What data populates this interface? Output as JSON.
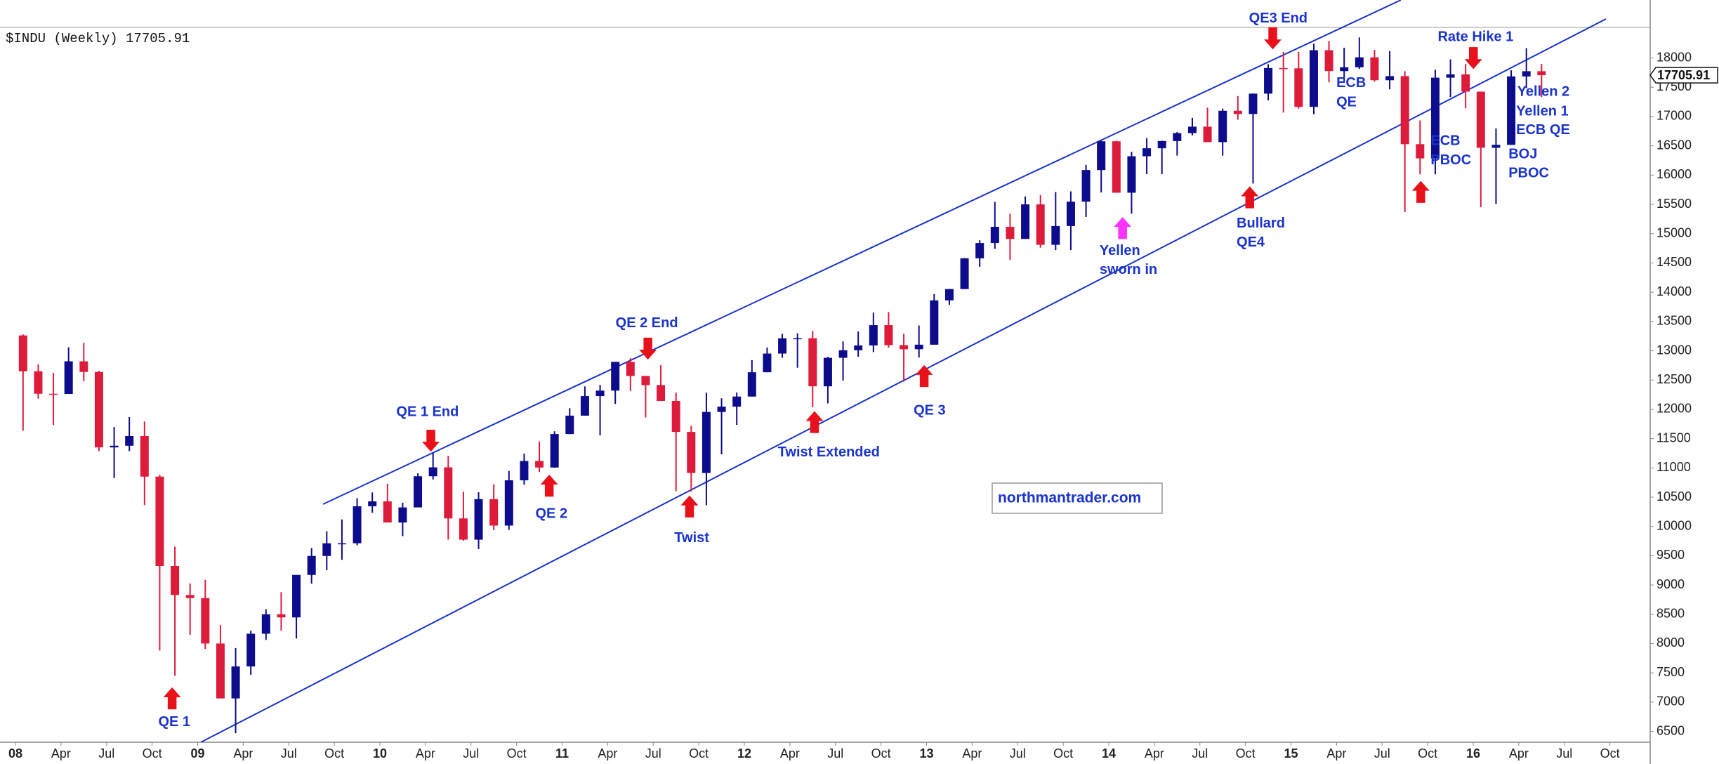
{
  "chart_data": {
    "type": "candlestick",
    "title": "$INDU (Weekly) 17705.91",
    "price_tag": "17705.91",
    "watermark": "northmantrader.com",
    "up_color": "#0c0c8c",
    "down_color": "#dd1c3c",
    "x": [
      "2008-01",
      "2008-02",
      "2008-03",
      "2008-04",
      "2008-05",
      "2008-06",
      "2008-07",
      "2008-08",
      "2008-09",
      "2008-10",
      "2008-11",
      "2008-12",
      "2009-01",
      "2009-02",
      "2009-03",
      "2009-04",
      "2009-05",
      "2009-06",
      "2009-07",
      "2009-08",
      "2009-09",
      "2009-10",
      "2009-11",
      "2009-12",
      "2010-01",
      "2010-02",
      "2010-03",
      "2010-04",
      "2010-05",
      "2010-06",
      "2010-07",
      "2010-08",
      "2010-09",
      "2010-10",
      "2010-11",
      "2010-12",
      "2011-01",
      "2011-02",
      "2011-03",
      "2011-04",
      "2011-05",
      "2011-06",
      "2011-07",
      "2011-08",
      "2011-09",
      "2011-10",
      "2011-11",
      "2011-12",
      "2012-01",
      "2012-02",
      "2012-03",
      "2012-04",
      "2012-05",
      "2012-06",
      "2012-07",
      "2012-08",
      "2012-09",
      "2012-10",
      "2012-11",
      "2012-12",
      "2013-01",
      "2013-02",
      "2013-03",
      "2013-04",
      "2013-05",
      "2013-06",
      "2013-07",
      "2013-08",
      "2013-09",
      "2013-10",
      "2013-11",
      "2013-12",
      "2014-01",
      "2014-02",
      "2014-03",
      "2014-04",
      "2014-05",
      "2014-06",
      "2014-07",
      "2014-08",
      "2014-09",
      "2014-10",
      "2014-11",
      "2014-12",
      "2015-01",
      "2015-02",
      "2015-03",
      "2015-04",
      "2015-05",
      "2015-06",
      "2015-07",
      "2015-08",
      "2015-09",
      "2015-10",
      "2015-11",
      "2015-12",
      "2016-01",
      "2016-02",
      "2016-03",
      "2016-04",
      "2016-05"
    ],
    "open": [
      13262,
      12650,
      12266,
      12263,
      12820,
      12638,
      11350,
      11378,
      11544,
      10851,
      9325,
      8829,
      8776,
      8001,
      7063,
      7609,
      8168,
      8500,
      8447,
      9172,
      9496,
      9712,
      9713,
      10344,
      10428,
      10067,
      10325,
      10857,
      11009,
      10137,
      9774,
      10466,
      10015,
      10788,
      11118,
      11006,
      11578,
      11892,
      12226,
      12320,
      12811,
      12570,
      12414,
      12143,
      11614,
      10913,
      11955,
      12046,
      12218,
      12633,
      12952,
      13212,
      13214,
      12393,
      12880,
      13009,
      13091,
      13437,
      13096,
      13026,
      13104,
      13861,
      14054,
      14579,
      14840,
      15116,
      14910,
      15500,
      14810,
      15130,
      15546,
      16086,
      16577,
      15699,
      16322,
      16458,
      16581,
      16717,
      16827,
      16563,
      17098,
      17043,
      17391,
      17828,
      17823,
      17165,
      18133,
      17776,
      17841,
      18011,
      17620,
      17690,
      16528,
      16285,
      17664,
      17720,
      17425,
      16466,
      16517,
      17685,
      17774
    ],
    "high": [
      13279,
      12767,
      12622,
      13058,
      13136,
      12657,
      11698,
      11867,
      11790,
      10883,
      9654,
      9026,
      9088,
      8316,
      7924,
      8220,
      8587,
      8878,
      9171,
      9630,
      9917,
      10120,
      10483,
      10580,
      10729,
      10405,
      10907,
      11258,
      11205,
      10594,
      10584,
      10720,
      10948,
      11245,
      11452,
      11625,
      12020,
      12391,
      12419,
      12810,
      12876,
      12570,
      12753,
      12284,
      11717,
      12284,
      12188,
      12288,
      12841,
      13056,
      13289,
      13297,
      13338,
      12898,
      13159,
      13330,
      13653,
      13662,
      13290,
      13431,
      13969,
      14054,
      14585,
      14887,
      15542,
      15340,
      15635,
      15658,
      15710,
      15722,
      16174,
      16588,
      16588,
      16398,
      16631,
      16588,
      16736,
      16978,
      17152,
      17136,
      17350,
      17395,
      17894,
      18103,
      18103,
      18244,
      18288,
      18175,
      18351,
      18137,
      18120,
      17774,
      16933,
      17799,
      17977,
      17897,
      17425,
      16795,
      17790,
      18168,
      17900
    ],
    "low": [
      11634,
      12181,
      11731,
      12266,
      12479,
      11287,
      10827,
      11287,
      10365,
      7882,
      7449,
      8149,
      7909,
      7114,
      6470,
      7467,
      8062,
      8220,
      8087,
      9022,
      9253,
      9430,
      9679,
      10235,
      10068,
      9836,
      10336,
      10802,
      9774,
      9757,
      9614,
      9936,
      9941,
      10711,
      10929,
      11004,
      11576,
      11892,
      11555,
      12093,
      12311,
      11862,
      12143,
      10604,
      10597,
      10362,
      11231,
      11735,
      12218,
      12633,
      12880,
      12710,
      12035,
      12101,
      12492,
      12898,
      12977,
      13052,
      12471,
      12884,
      13104,
      13784,
      14054,
      14434,
      14740,
      14551,
      14910,
      14760,
      14719,
      14720,
      15285,
      15703,
      15699,
      15340,
      16016,
      16016,
      16333,
      16679,
      16563,
      16333,
      16945,
      15855,
      17276,
      17068,
      17136,
      17038,
      17585,
      17576,
      17815,
      17597,
      17465,
      15370,
      16013,
      16013,
      17334,
      17139,
      15451,
      15503,
      16517,
      17484,
      17332
    ],
    "close": [
      12650,
      12266,
      12263,
      12820,
      12638,
      11350,
      11378,
      11544,
      10851,
      9325,
      8829,
      8776,
      8001,
      7063,
      7609,
      8168,
      8500,
      8447,
      9172,
      9496,
      9712,
      9713,
      10344,
      10428,
      10067,
      10325,
      10857,
      11009,
      10137,
      9774,
      10466,
      10015,
      10788,
      11118,
      11006,
      11578,
      11892,
      12226,
      12320,
      12811,
      12570,
      12414,
      12143,
      11614,
      10913,
      11955,
      12046,
      12218,
      12633,
      12952,
      13212,
      13214,
      12393,
      12880,
      13009,
      13091,
      13437,
      13096,
      13026,
      13104,
      13861,
      14054,
      14579,
      14840,
      15116,
      14910,
      15500,
      14810,
      15130,
      15546,
      16086,
      16577,
      15699,
      16322,
      16458,
      16581,
      16717,
      16827,
      16563,
      17098,
      17043,
      17391,
      17828,
      17823,
      17165,
      18133,
      17776,
      17841,
      18011,
      17620,
      17690,
      16528,
      16285,
      17664,
      17720,
      17425,
      16466,
      16517,
      17685,
      17774,
      17705.91
    ],
    "ylim": [
      6315,
      18990
    ],
    "yticks": [
      6500,
      7000,
      7500,
      8000,
      8500,
      9000,
      9500,
      10000,
      10500,
      11000,
      11500,
      12000,
      12500,
      13000,
      13500,
      14000,
      14500,
      15000,
      15500,
      16000,
      16500,
      17000,
      17500,
      18000
    ],
    "xticks": [
      {
        "value": "2008-01",
        "label": "08"
      },
      {
        "value": "2008-04",
        "label": "Apr"
      },
      {
        "value": "2008-07",
        "label": "Jul"
      },
      {
        "value": "2008-10",
        "label": "Oct"
      },
      {
        "value": "2009-01",
        "label": "09"
      },
      {
        "value": "2009-04",
        "label": "Apr"
      },
      {
        "value": "2009-07",
        "label": "Jul"
      },
      {
        "value": "2009-10",
        "label": "Oct"
      },
      {
        "value": "2010-01",
        "label": "10"
      },
      {
        "value": "2010-04",
        "label": "Apr"
      },
      {
        "value": "2010-07",
        "label": "Jul"
      },
      {
        "value": "2010-10",
        "label": "Oct"
      },
      {
        "value": "2011-01",
        "label": "11"
      },
      {
        "value": "2011-04",
        "label": "Apr"
      },
      {
        "value": "2011-07",
        "label": "Jul"
      },
      {
        "value": "2011-10",
        "label": "Oct"
      },
      {
        "value": "2012-01",
        "label": "12"
      },
      {
        "value": "2012-04",
        "label": "Apr"
      },
      {
        "value": "2012-07",
        "label": "Jul"
      },
      {
        "value": "2012-10",
        "label": "Oct"
      },
      {
        "value": "2013-01",
        "label": "13"
      },
      {
        "value": "2013-04",
        "label": "Apr"
      },
      {
        "value": "2013-07",
        "label": "Jul"
      },
      {
        "value": "2013-10",
        "label": "Oct"
      },
      {
        "value": "2014-01",
        "label": "14"
      },
      {
        "value": "2014-04",
        "label": "Apr"
      },
      {
        "value": "2014-07",
        "label": "Jul"
      },
      {
        "value": "2014-10",
        "label": "Oct"
      },
      {
        "value": "2015-01",
        "label": "15"
      },
      {
        "value": "2015-04",
        "label": "Apr"
      },
      {
        "value": "2015-07",
        "label": "Jul"
      },
      {
        "value": "2015-10",
        "label": "Oct"
      },
      {
        "value": "2016-01",
        "label": "16"
      },
      {
        "value": "2016-04",
        "label": "Apr"
      },
      {
        "value": "2016-07",
        "label": "Jul"
      },
      {
        "value": "2016-10",
        "label": "Oct"
      }
    ],
    "annotations": [
      {
        "lines": [
          "QE 1"
        ]
      },
      {
        "lines": [
          "QE 1 End"
        ]
      },
      {
        "lines": [
          "QE 2"
        ]
      },
      {
        "lines": [
          "QE 2 End"
        ]
      },
      {
        "lines": [
          "Twist"
        ]
      },
      {
        "lines": [
          "Twist Extended"
        ]
      },
      {
        "lines": [
          "QE 3"
        ]
      },
      {
        "lines": [
          "Yellen",
          "sworn in"
        ]
      },
      {
        "lines": [
          "Bullard",
          "QE4"
        ]
      },
      {
        "lines": [
          "QE3 End"
        ]
      },
      {
        "lines": [
          "ECB",
          "QE"
        ]
      },
      {
        "lines": [
          "ECB",
          "PBOC"
        ]
      },
      {
        "lines": [
          "Rate Hike 1"
        ]
      },
      {
        "lines": [
          "Yellen 2"
        ]
      },
      {
        "lines": [
          "Yellen 1"
        ]
      },
      {
        "lines": [
          "ECB QE"
        ]
      },
      {
        "lines": [
          "BOJ",
          "PBOC"
        ]
      }
    ]
  }
}
